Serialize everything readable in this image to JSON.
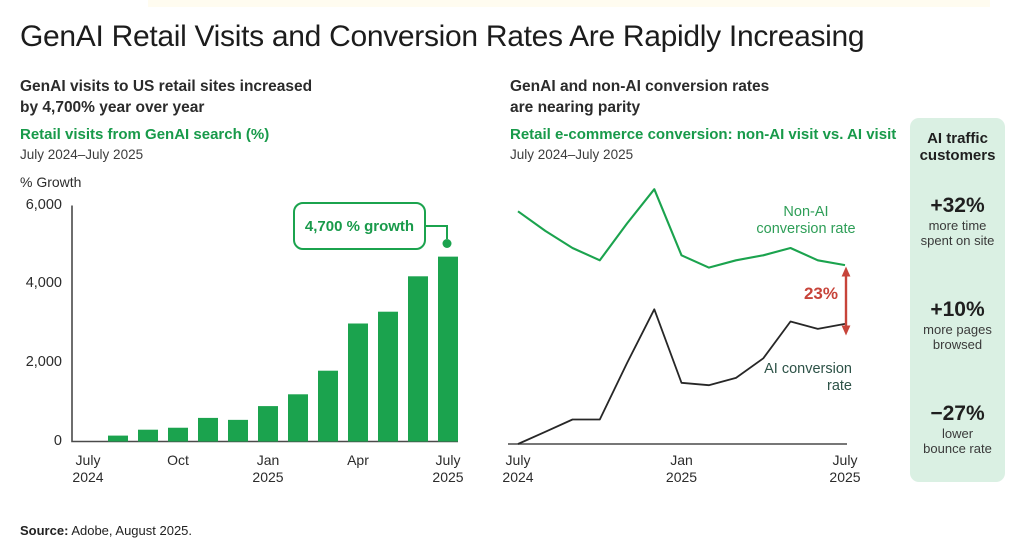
{
  "title": "GenAI Retail Visits and Conversion Rates Are Rapidly Increasing",
  "left": {
    "heading_line1": "GenAI visits to US retail sites increased",
    "heading_line2": "by 4,700% year over year",
    "subtitle": "Retail visits from GenAI search (%)",
    "date_range": "July 2024–July 2025",
    "y_axis_label": "% Growth",
    "callout_label": "4,700 % growth"
  },
  "right": {
    "heading_line1": "GenAI and non-AI conversion rates",
    "heading_line2": "are nearing parity",
    "subtitle": "Retail e-commerce conversion: non-AI visit vs. AI visit",
    "date_range": "July 2024–July 2025",
    "nonai_label_line1": "Non-AI",
    "nonai_label_line2": "conversion rate",
    "ai_label_line1": "AI conversion",
    "ai_label_line2": "rate",
    "gap_label": "23%"
  },
  "panel": {
    "title_line1": "AI traffic",
    "title_line2": "customers",
    "stats": [
      {
        "value": "+32%",
        "desc_line1": "more time",
        "desc_line2": "spent on site"
      },
      {
        "value": "+10%",
        "desc_line1": "more pages",
        "desc_line2": "browsed"
      },
      {
        "value": "−27%",
        "desc_line1": "lower",
        "desc_line2": "bounce rate"
      }
    ]
  },
  "source": {
    "label": "Source:",
    "text": "Adobe, August 2025."
  },
  "colors": {
    "green": "#1ba34e",
    "green_text": "#189a4a",
    "dark_line": "#272727",
    "red": "#c7443a",
    "panel_bg": "#daf0e3",
    "ai_label_text": "#2d5247",
    "axis": "#4a4a4a"
  },
  "chart_data": [
    {
      "type": "bar",
      "title": "Retail visits from GenAI search (%)",
      "subtitle": "July 2024–July 2025",
      "xlabel": "",
      "ylabel": "% Growth",
      "ylim": [
        0,
        6000
      ],
      "yticks": [
        0,
        2000,
        4000,
        6000
      ],
      "grid": false,
      "bar_color": "#1ba34e",
      "categories": [
        "Jul 2024",
        "Aug 2024",
        "Sep 2024",
        "Oct 2024",
        "Nov 2024",
        "Dec 2024",
        "Jan 2025",
        "Feb 2025",
        "Mar 2025",
        "Apr 2025",
        "May 2025",
        "Jun 2025",
        "Jul 2025"
      ],
      "values": [
        0,
        150,
        300,
        350,
        600,
        550,
        900,
        1200,
        1800,
        3000,
        3300,
        4200,
        4700
      ],
      "annotation": "4,700 % growth",
      "shown_ticks": [
        {
          "index": 0,
          "lines": [
            "July",
            "2024"
          ]
        },
        {
          "index": 3,
          "lines": [
            "Oct"
          ]
        },
        {
          "index": 6,
          "lines": [
            "Jan",
            "2025"
          ]
        },
        {
          "index": 9,
          "lines": [
            "Apr"
          ]
        },
        {
          "index": 12,
          "lines": [
            "July",
            "2025"
          ]
        }
      ]
    },
    {
      "type": "line",
      "title": "Retail e-commerce conversion: non-AI visit vs. AI visit",
      "subtitle": "July 2024–July 2025",
      "xlabel": "",
      "ylabel": "",
      "note": "y-axis unlabeled in figure; values are relative conversion-rate units estimated from plot positions",
      "grid": false,
      "x": [
        "Jul 2024",
        "Aug 2024",
        "Sep 2024",
        "Oct 2024",
        "Nov 2024",
        "Dec 2024",
        "Jan 2025",
        "Feb 2025",
        "Mar 2025",
        "Apr 2025",
        "May 2025",
        "Jun 2025",
        "Jul 2025"
      ],
      "series": [
        {
          "name": "Non-AI conversion rate",
          "color": "#1ba34e",
          "values": [
            9.5,
            8.7,
            8.0,
            7.5,
            9.0,
            10.4,
            7.7,
            7.2,
            7.5,
            7.7,
            8.0,
            7.5,
            7.3
          ]
        },
        {
          "name": "AI conversion rate",
          "color": "#272727",
          "values": [
            0,
            0.5,
            1.0,
            1.0,
            3.3,
            5.5,
            2.5,
            2.4,
            2.7,
            3.5,
            5.0,
            4.7,
            4.9
          ]
        }
      ],
      "annotation": "23%",
      "shown_ticks": [
        {
          "index": 0,
          "lines": [
            "July",
            "2024"
          ]
        },
        {
          "index": 6,
          "lines": [
            "Jan",
            "2025"
          ]
        },
        {
          "index": 12,
          "lines": [
            "July",
            "2025"
          ]
        }
      ]
    }
  ]
}
